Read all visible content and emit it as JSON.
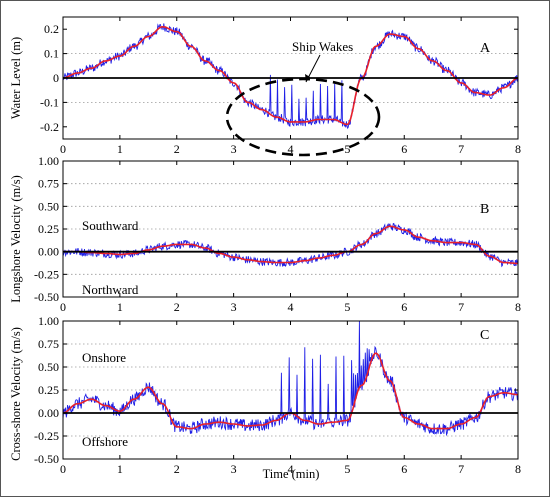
{
  "colors": {
    "raw": "#1f1fe6",
    "smooth": "#e8202a"
  },
  "chart_data": [
    {
      "type": "line",
      "panel_label": "A",
      "ylabel": "Water Level (m)",
      "xlabel": "",
      "xlim": [
        0,
        8
      ],
      "ylim": [
        -0.25,
        0.25
      ],
      "xticks": [
        "0",
        "1",
        "2",
        "3",
        "4",
        "5",
        "6",
        "7",
        "8"
      ],
      "yticks": [
        "-0.2",
        "-0.1",
        "0",
        "0.1",
        "0.2"
      ],
      "ytick_values": [
        -0.2,
        -0.1,
        0,
        0.1,
        0.2
      ],
      "grid": true,
      "annotations": [
        {
          "text": "Ship Wakes",
          "x": 4.7,
          "y": 0.17
        }
      ],
      "series": [
        {
          "name": "",
          "x": [
            0,
            0.25,
            0.5,
            0.75,
            1.0,
            1.25,
            1.5,
            1.75,
            2.0,
            2.25,
            2.5,
            2.75,
            3.0,
            3.25,
            3.5,
            3.75,
            4.0,
            4.25,
            4.5,
            4.75,
            5.0,
            5.25,
            5.5,
            5.75,
            6.0,
            6.25,
            6.5,
            6.75,
            7.0,
            7.25,
            7.5,
            7.75,
            8.0
          ],
          "values": [
            0.0,
            0.02,
            0.04,
            0.07,
            0.09,
            0.13,
            0.17,
            0.21,
            0.19,
            0.13,
            0.07,
            0.03,
            -0.02,
            -0.1,
            -0.13,
            -0.16,
            -0.18,
            -0.18,
            -0.17,
            -0.17,
            -0.19,
            0.0,
            0.13,
            0.18,
            0.17,
            0.12,
            0.07,
            0.03,
            -0.02,
            -0.06,
            -0.07,
            -0.04,
            0.0
          ]
        }
      ]
    },
    {
      "type": "line",
      "panel_label": "B",
      "ylabel": "Longshore Velocity (m/s)",
      "xlabel": "",
      "xlim": [
        0,
        8
      ],
      "ylim": [
        -0.5,
        1.0
      ],
      "xticks": [
        "0",
        "1",
        "2",
        "3",
        "4",
        "5",
        "6",
        "7",
        "8"
      ],
      "yticks": [
        "-0.50",
        "-0.25",
        "0.00",
        "0.25",
        "0.50",
        "0.75",
        "1.00"
      ],
      "ytick_values": [
        -0.5,
        -0.25,
        0,
        0.25,
        0.5,
        0.75,
        1.0
      ],
      "grid": true,
      "annotations": [
        {
          "text": "Southward",
          "x": 0.9,
          "y": 0.09
        },
        {
          "text": "Northward",
          "x": 0.9,
          "y": -0.12
        }
      ],
      "series": [
        {
          "name": "",
          "x": [
            0,
            0.25,
            0.5,
            0.75,
            1.0,
            1.25,
            1.5,
            1.75,
            2.0,
            2.25,
            2.5,
            2.75,
            3.0,
            3.25,
            3.5,
            3.75,
            4.0,
            4.25,
            4.5,
            4.75,
            5.0,
            5.25,
            5.5,
            5.75,
            6.0,
            6.25,
            6.5,
            6.75,
            7.0,
            7.25,
            7.5,
            7.75,
            8.0
          ],
          "values": [
            0.0,
            0.0,
            -0.01,
            -0.02,
            -0.03,
            -0.02,
            0.02,
            0.06,
            0.08,
            0.08,
            0.04,
            -0.02,
            -0.06,
            -0.09,
            -0.11,
            -0.12,
            -0.12,
            -0.1,
            -0.07,
            -0.04,
            0.0,
            0.08,
            0.2,
            0.28,
            0.24,
            0.16,
            0.12,
            0.1,
            0.1,
            0.08,
            -0.05,
            -0.12,
            -0.13
          ]
        }
      ]
    },
    {
      "type": "line",
      "panel_label": "C",
      "ylabel": "Cross-shore Velocity (m/s)",
      "xlabel": "Time (min)",
      "xlim": [
        0,
        8
      ],
      "ylim": [
        -0.5,
        1.0
      ],
      "xticks": [
        "0",
        "1",
        "2",
        "3",
        "4",
        "5",
        "6",
        "7",
        "8"
      ],
      "yticks": [
        "-0.50",
        "-0.25",
        "0.00",
        "0.25",
        "0.50",
        "0.75",
        "1.00"
      ],
      "ytick_values": [
        -0.5,
        -0.25,
        0,
        0.25,
        0.5,
        0.75,
        1.0
      ],
      "grid": true,
      "annotations": [
        {
          "text": "Onshore",
          "x": 0.85,
          "y": 0.15
        },
        {
          "text": "Offshore",
          "x": 0.85,
          "y": -0.12
        }
      ],
      "series": [
        {
          "name": "",
          "x": [
            0,
            0.25,
            0.5,
            0.75,
            1.0,
            1.25,
            1.5,
            1.75,
            2.0,
            2.25,
            2.5,
            2.75,
            3.0,
            3.25,
            3.5,
            3.75,
            4.0,
            4.25,
            4.5,
            4.75,
            5.0,
            5.25,
            5.5,
            5.75,
            6.0,
            6.25,
            6.5,
            6.75,
            7.0,
            7.25,
            7.5,
            7.75,
            8.0
          ],
          "values": [
            0.0,
            0.1,
            0.15,
            0.08,
            0.02,
            0.15,
            0.28,
            0.1,
            -0.15,
            -0.17,
            -0.12,
            -0.1,
            -0.12,
            -0.14,
            -0.13,
            -0.08,
            0.0,
            -0.08,
            -0.12,
            -0.1,
            -0.08,
            0.3,
            0.65,
            0.35,
            -0.05,
            -0.12,
            -0.17,
            -0.17,
            -0.12,
            -0.05,
            0.18,
            0.22,
            0.2
          ]
        }
      ]
    }
  ]
}
